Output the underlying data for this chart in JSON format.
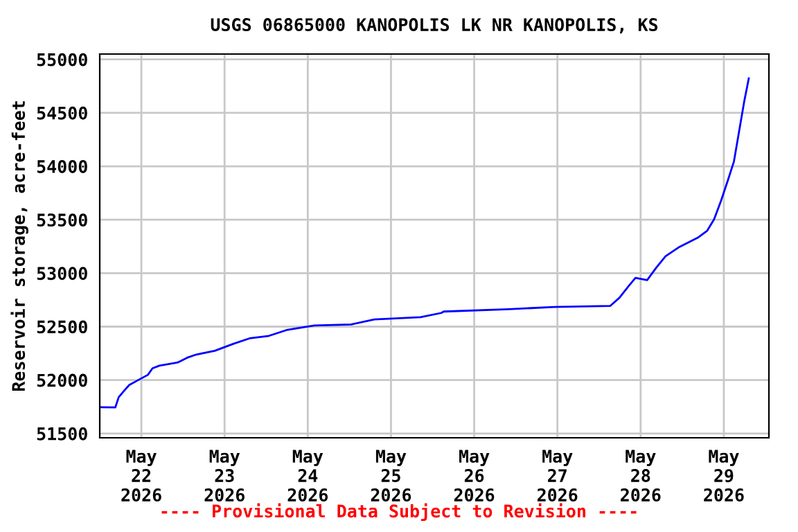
{
  "chart_data": {
    "type": "line",
    "title": "USGS 06865000 KANOPOLIS LK NR KANOPOLIS, KS",
    "ylabel": "Reservoir storage, acre-feet",
    "x": [
      "2026-05-21T12:17",
      "2026-05-21T16:30",
      "2026-05-21T17:28",
      "2026-05-21T19:12",
      "2026-05-21T20:31",
      "2026-05-21T23:12",
      "2026-05-22T01:53",
      "2026-05-22T03:12",
      "2026-05-22T05:12",
      "2026-05-22T10:31",
      "2026-05-22T13:12",
      "2026-05-22T15:53",
      "2026-05-22T21:12",
      "2026-05-23T02:31",
      "2026-05-23T07:12",
      "2026-05-23T12:31",
      "2026-05-23T17:53",
      "2026-05-24T01:53",
      "2026-05-24T12:31",
      "2026-05-24T19:12",
      "2026-05-25T08:31",
      "2026-05-25T14:31",
      "2026-05-25T15:12",
      "2026-05-26T09:53",
      "2026-05-26T23:12",
      "2026-05-27T15:12",
      "2026-05-27T17:53",
      "2026-05-27T20:31",
      "2026-05-27T22:31",
      "2026-05-28T01:53",
      "2026-05-28T04:31",
      "2026-05-28T07:12",
      "2026-05-28T11:12",
      "2026-05-28T16:31",
      "2026-05-28T19:12",
      "2026-05-28T21:12",
      "2026-05-28T23:12",
      "2026-05-29T01:12",
      "2026-05-29T02:55",
      "2026-05-29T04:31",
      "2026-05-29T05:53",
      "2026-05-29T07:12"
    ],
    "series": [
      {
        "color": "#0000ff",
        "values": [
          51746,
          51745,
          51840,
          51906,
          51954,
          52002,
          52049,
          52110,
          52135,
          52165,
          52209,
          52239,
          52274,
          52339,
          52390,
          52411,
          52468,
          52511,
          52520,
          52567,
          52589,
          52628,
          52641,
          52663,
          52684,
          52693,
          52770,
          52878,
          52956,
          52935,
          53052,
          53159,
          53246,
          53332,
          53397,
          53505,
          53678,
          53872,
          54045,
          54348,
          54607,
          54823
        ]
      }
    ],
    "xlim": [
      "2026-05-21T12:00",
      "2026-05-29T13:00"
    ],
    "xticks": [
      {
        "value": "2026-05-22",
        "label": "May\n22\n2026"
      },
      {
        "value": "2026-05-23",
        "label": "May\n23\n2026"
      },
      {
        "value": "2026-05-24",
        "label": "May\n24\n2026"
      },
      {
        "value": "2026-05-25",
        "label": "May\n25\n2026"
      },
      {
        "value": "2026-05-26",
        "label": "May\n26\n2026"
      },
      {
        "value": "2026-05-27",
        "label": "May\n27\n2026"
      },
      {
        "value": "2026-05-28",
        "label": "May\n28\n2026"
      },
      {
        "value": "2026-05-29",
        "label": "May\n29\n2026"
      }
    ],
    "ylim": [
      51460,
      55050
    ],
    "yticks": [
      51500,
      52000,
      52500,
      53000,
      53500,
      54000,
      54500,
      55000
    ],
    "grid": true,
    "line_style": "solid",
    "annotations": [
      "---- Provisional Data Subject to Revision ----"
    ]
  }
}
